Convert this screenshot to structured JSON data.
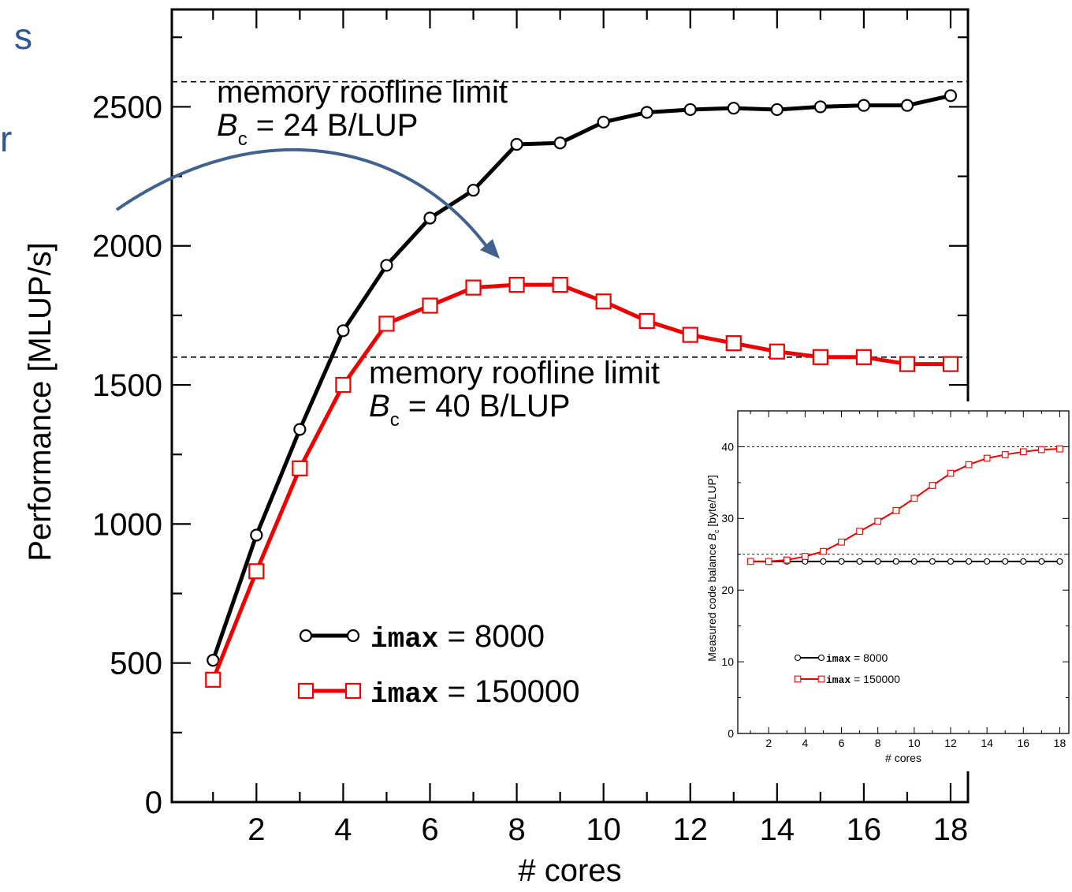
{
  "slide_fragments": [
    "s",
    "r"
  ],
  "chart_data": [
    {
      "type": "line",
      "xlabel": "# cores",
      "ylabel": "Performance [MLUP/s]",
      "xlim": [
        0.05,
        18.4
      ],
      "ylim": [
        0,
        2850
      ],
      "x_ticks": [
        2,
        4,
        6,
        8,
        10,
        12,
        14,
        16,
        18
      ],
      "y_ticks": [
        0,
        500,
        1000,
        1500,
        2000,
        2500
      ],
      "grid": false,
      "legend_position": "lower-center",
      "series": [
        {
          "name": "8000",
          "name_code": "imax",
          "color": "#000000",
          "marker": "circle",
          "x": [
            1,
            2,
            3,
            4,
            5,
            6,
            7,
            8,
            9,
            10,
            11,
            12,
            13,
            14,
            15,
            16,
            17,
            18
          ],
          "values": [
            510,
            960,
            1340,
            1695,
            1930,
            2100,
            2200,
            2365,
            2370,
            2445,
            2480,
            2490,
            2495,
            2490,
            2500,
            2505,
            2505,
            2540
          ]
        },
        {
          "name": "150000",
          "name_code": "imax",
          "color": "#ee0000",
          "marker": "square",
          "x": [
            1,
            2,
            3,
            4,
            5,
            6,
            7,
            8,
            9,
            10,
            11,
            12,
            13,
            14,
            15,
            16,
            17,
            18
          ],
          "values": [
            440,
            830,
            1200,
            1500,
            1720,
            1785,
            1850,
            1860,
            1860,
            1800,
            1730,
            1680,
            1650,
            1620,
            1600,
            1600,
            1575,
            1575
          ]
        }
      ],
      "reference_lines": [
        {
          "y": 2590,
          "line1": "memory roofline limit",
          "b_symbol": "B",
          "b_sub": "c",
          "b_rest": " = 24 B/LUP"
        },
        {
          "y": 1600,
          "line1": "memory roofline limit",
          "b_symbol": "B",
          "b_sub": "c",
          "b_rest": " = 40 B/LUP"
        }
      ],
      "legend_eq": " = "
    },
    {
      "type": "line",
      "xlabel": "# cores",
      "ylabel_prefix": "Measured code balance ",
      "ylabel_symbol": "B",
      "ylabel_sub": "c",
      "ylabel_suffix": " [byte/LUP]",
      "xlim": [
        0.3,
        18.5
      ],
      "ylim": [
        0,
        45
      ],
      "x_ticks": [
        2,
        4,
        6,
        8,
        10,
        12,
        14,
        16,
        18
      ],
      "y_ticks": [
        0,
        10,
        20,
        30,
        40
      ],
      "grid": false,
      "legend_position": "lower-left",
      "series": [
        {
          "name": "8000",
          "name_code": "imax",
          "color": "#000000",
          "marker": "circle",
          "x": [
            1,
            2,
            3,
            4,
            5,
            6,
            7,
            8,
            9,
            10,
            11,
            12,
            13,
            14,
            15,
            16,
            17,
            18
          ],
          "values": [
            24,
            24,
            24,
            24,
            24,
            24,
            24,
            24,
            24,
            24,
            24,
            24,
            24,
            24,
            24,
            24,
            24,
            24
          ]
        },
        {
          "name": "150000",
          "name_code": "imax",
          "color": "#ee0000",
          "marker": "square",
          "x": [
            1,
            2,
            3,
            4,
            5,
            6,
            7,
            8,
            9,
            10,
            11,
            12,
            13,
            14,
            15,
            16,
            17,
            18
          ],
          "values": [
            24,
            24,
            24.2,
            24.7,
            25.4,
            26.7,
            28.2,
            29.6,
            31.1,
            32.8,
            34.6,
            36.3,
            37.5,
            38.4,
            38.9,
            39.3,
            39.6,
            39.7
          ]
        }
      ],
      "reference_lines": [
        {
          "y": 40
        },
        {
          "y": 25
        }
      ],
      "legend_eq": " = "
    }
  ]
}
